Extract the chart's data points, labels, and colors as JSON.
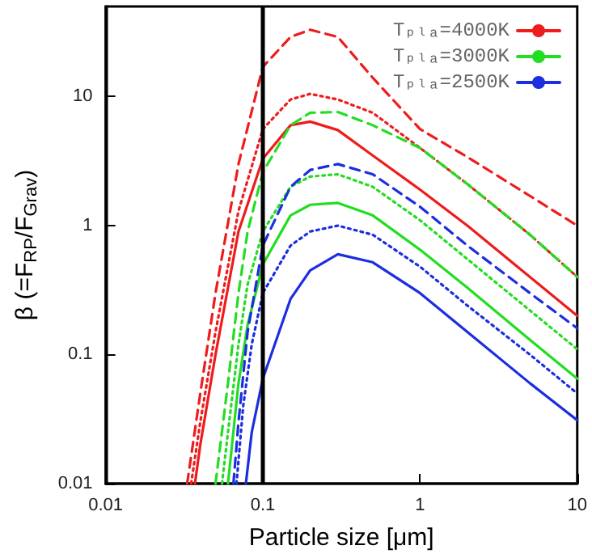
{
  "chart_data": {
    "type": "line",
    "xlabel": "Particle size [μm]",
    "ylabel": "β (=F$_{RP}$/F$_{Grav}$)",
    "log": "xy",
    "grid": false,
    "legend": "top right",
    "marker": "none",
    "xlim": [
      0.01,
      10
    ],
    "xticks": [
      0.01,
      0.1,
      1,
      10
    ],
    "ylim": [
      0.01,
      50
    ],
    "yticks": [
      0.01,
      0.1,
      1,
      10
    ],
    "ref_lines": [
      {
        "axis": "x",
        "value": 0.1,
        "color": "#000000"
      }
    ],
    "series": [
      {
        "color": "#ee1c1c",
        "line_style": "dashed",
        "x": [
          0.033,
          0.04,
          0.05,
          0.07,
          0.1,
          0.15,
          0.2,
          0.3,
          0.5,
          1,
          2,
          5,
          10
        ],
        "values": [
          0.01,
          0.05,
          0.3,
          3,
          17,
          29,
          33,
          29,
          14,
          5.6,
          3.4,
          1.7,
          1.0
        ]
      },
      {
        "color": "#ee1c1c",
        "line_style": "dotted",
        "x": [
          0.035,
          0.04,
          0.05,
          0.07,
          0.1,
          0.15,
          0.2,
          0.3,
          0.5,
          1,
          2,
          5,
          10
        ],
        "values": [
          0.01,
          0.03,
          0.15,
          1.3,
          5.6,
          9.5,
          10.5,
          9.5,
          7.5,
          4,
          2.1,
          0.85,
          0.4
        ]
      },
      {
        "name": "Tₚₗₐ=4000K",
        "color": "#ee1c1c",
        "line_style": "solid",
        "x": [
          0.037,
          0.04,
          0.05,
          0.07,
          0.1,
          0.15,
          0.2,
          0.3,
          0.5,
          1,
          2,
          5,
          10
        ],
        "values": [
          0.01,
          0.02,
          0.1,
          0.9,
          3.3,
          6,
          6.4,
          5.5,
          3.5,
          1.9,
          1,
          0.4,
          0.2
        ]
      },
      {
        "color": "#22dd22",
        "line_style": "dashed",
        "x": [
          0.05,
          0.06,
          0.07,
          0.08,
          0.1,
          0.15,
          0.2,
          0.3,
          0.5,
          1,
          2,
          5,
          10
        ],
        "values": [
          0.01,
          0.06,
          0.3,
          0.9,
          2.6,
          6,
          7.5,
          7.6,
          6,
          4,
          2.1,
          0.85,
          0.4
        ]
      },
      {
        "color": "#22dd22",
        "line_style": "dotted",
        "x": [
          0.055,
          0.06,
          0.07,
          0.08,
          0.1,
          0.15,
          0.2,
          0.3,
          0.5,
          1,
          2,
          5,
          10
        ],
        "values": [
          0.01,
          0.025,
          0.12,
          0.35,
          0.9,
          2,
          2.4,
          2.5,
          2,
          1.1,
          0.55,
          0.22,
          0.11
        ]
      },
      {
        "name": "Tₚₗₐ=3000K",
        "color": "#22dd22",
        "line_style": "solid",
        "x": [
          0.06,
          0.07,
          0.08,
          0.1,
          0.15,
          0.2,
          0.3,
          0.5,
          1,
          2,
          5,
          10
        ],
        "values": [
          0.01,
          0.06,
          0.17,
          0.5,
          1.2,
          1.45,
          1.5,
          1.2,
          0.65,
          0.33,
          0.13,
          0.065
        ]
      },
      {
        "color": "#1c2ee0",
        "line_style": "dashed",
        "x": [
          0.065,
          0.07,
          0.08,
          0.1,
          0.15,
          0.2,
          0.3,
          0.5,
          1,
          2,
          5,
          10
        ],
        "values": [
          0.01,
          0.03,
          0.15,
          0.7,
          2,
          2.7,
          3,
          2.5,
          1.4,
          0.7,
          0.3,
          0.16
        ]
      },
      {
        "color": "#1c2ee0",
        "line_style": "dotted",
        "x": [
          0.068,
          0.075,
          0.085,
          0.1,
          0.15,
          0.2,
          0.3,
          0.5,
          1,
          2,
          5,
          10
        ],
        "values": [
          0.01,
          0.04,
          0.12,
          0.3,
          0.7,
          0.9,
          1,
          0.85,
          0.48,
          0.24,
          0.1,
          0.05
        ]
      },
      {
        "name": "Tₚₗₐ=2500K",
        "color": "#1c2ee0",
        "line_style": "solid",
        "x": [
          0.078,
          0.085,
          0.1,
          0.15,
          0.2,
          0.3,
          0.5,
          1,
          2,
          5,
          10
        ],
        "values": [
          0.01,
          0.025,
          0.065,
          0.27,
          0.45,
          0.6,
          0.52,
          0.3,
          0.15,
          0.06,
          0.031
        ]
      }
    ]
  }
}
